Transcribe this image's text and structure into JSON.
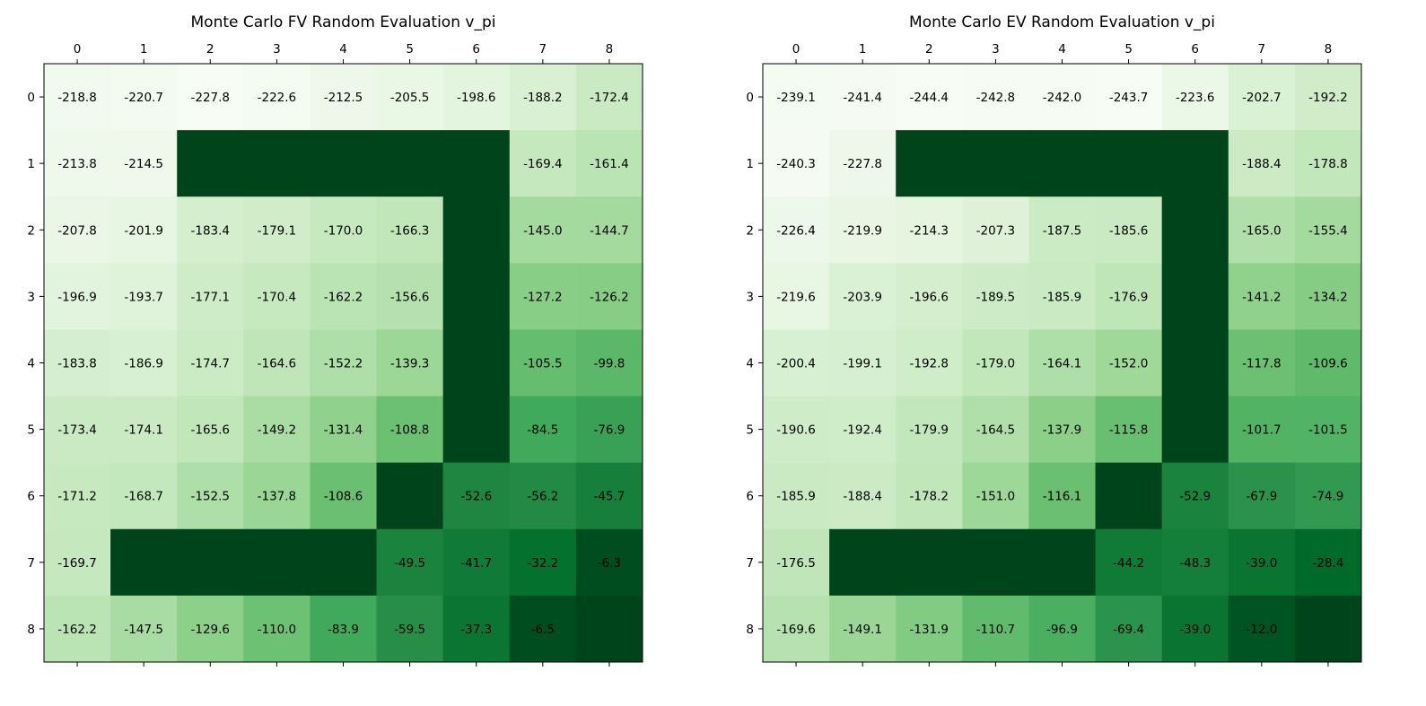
{
  "chart_data": [
    {
      "type": "heatmap",
      "title": "Monte Carlo FV Random Evaluation v_pi",
      "x_tick_labels": [
        "0",
        "1",
        "2",
        "3",
        "4",
        "5",
        "6",
        "7",
        "8"
      ],
      "y_tick_labels": [
        "0",
        "1",
        "2",
        "3",
        "4",
        "5",
        "6",
        "7",
        "8"
      ],
      "x_ticks_position": "top",
      "colormap": "Greens",
      "walls": [
        [
          1,
          2
        ],
        [
          1,
          3
        ],
        [
          1,
          4
        ],
        [
          1,
          5
        ],
        [
          1,
          6
        ],
        [
          2,
          6
        ],
        [
          3,
          6
        ],
        [
          4,
          6
        ],
        [
          5,
          6
        ],
        [
          6,
          5
        ],
        [
          7,
          1
        ],
        [
          7,
          2
        ],
        [
          7,
          3
        ],
        [
          7,
          4
        ],
        [
          8,
          8
        ]
      ],
      "values": [
        [
          -218.8,
          -220.7,
          -227.8,
          -222.6,
          -212.5,
          -205.5,
          -198.6,
          -188.2,
          -172.4
        ],
        [
          -213.8,
          -214.5,
          null,
          null,
          null,
          null,
          null,
          -169.4,
          -161.4
        ],
        [
          -207.8,
          -201.9,
          -183.4,
          -179.1,
          -170.0,
          -166.3,
          null,
          -145.0,
          -144.7
        ],
        [
          -196.9,
          -193.7,
          -177.1,
          -170.4,
          -162.2,
          -156.6,
          null,
          -127.2,
          -126.2
        ],
        [
          -183.8,
          -186.9,
          -174.7,
          -164.6,
          -152.2,
          -139.3,
          null,
          -105.5,
          -99.8
        ],
        [
          -173.4,
          -174.1,
          -165.6,
          -149.2,
          -131.4,
          -108.8,
          null,
          -84.5,
          -76.9
        ],
        [
          -171.2,
          -168.7,
          -152.5,
          -137.8,
          -108.6,
          null,
          -52.6,
          -56.2,
          -45.7
        ],
        [
          -169.7,
          null,
          null,
          null,
          null,
          -49.5,
          -41.7,
          -32.2,
          -6.3
        ],
        [
          -162.2,
          -147.5,
          -129.6,
          -110.0,
          -83.9,
          -59.5,
          -37.3,
          -6.5,
          null
        ]
      ]
    },
    {
      "type": "heatmap",
      "title": "Monte Carlo EV Random Evaluation v_pi",
      "x_tick_labels": [
        "0",
        "1",
        "2",
        "3",
        "4",
        "5",
        "6",
        "7",
        "8"
      ],
      "y_tick_labels": [
        "0",
        "1",
        "2",
        "3",
        "4",
        "5",
        "6",
        "7",
        "8"
      ],
      "x_ticks_position": "top",
      "colormap": "Greens",
      "walls": [
        [
          1,
          2
        ],
        [
          1,
          3
        ],
        [
          1,
          4
        ],
        [
          1,
          5
        ],
        [
          1,
          6
        ],
        [
          2,
          6
        ],
        [
          3,
          6
        ],
        [
          4,
          6
        ],
        [
          5,
          6
        ],
        [
          6,
          5
        ],
        [
          7,
          1
        ],
        [
          7,
          2
        ],
        [
          7,
          3
        ],
        [
          7,
          4
        ],
        [
          8,
          8
        ]
      ],
      "values": [
        [
          -239.1,
          -241.4,
          -244.4,
          -242.8,
          -242.0,
          -243.7,
          -223.6,
          -202.7,
          -192.2
        ],
        [
          -240.3,
          -227.8,
          null,
          null,
          null,
          null,
          null,
          -188.4,
          -178.8
        ],
        [
          -226.4,
          -219.9,
          -214.3,
          -207.3,
          -187.5,
          -185.6,
          null,
          -165.0,
          -155.4
        ],
        [
          -219.6,
          -203.9,
          -196.6,
          -189.5,
          -185.9,
          -176.9,
          null,
          -141.2,
          -134.2
        ],
        [
          -200.4,
          -199.1,
          -192.8,
          -179.0,
          -164.1,
          -152.0,
          null,
          -117.8,
          -109.6
        ],
        [
          -190.6,
          -192.4,
          -179.9,
          -164.5,
          -137.9,
          -115.8,
          null,
          -101.7,
          -101.5
        ],
        [
          -185.9,
          -188.4,
          -178.2,
          -151.0,
          -116.1,
          null,
          -52.9,
          -67.9,
          -74.9
        ],
        [
          -176.5,
          null,
          null,
          null,
          null,
          -44.2,
          -48.3,
          -39.0,
          -28.4
        ],
        [
          -169.6,
          -149.1,
          -131.9,
          -110.7,
          -96.9,
          -69.4,
          -39.0,
          -12.0,
          null
        ]
      ]
    }
  ]
}
